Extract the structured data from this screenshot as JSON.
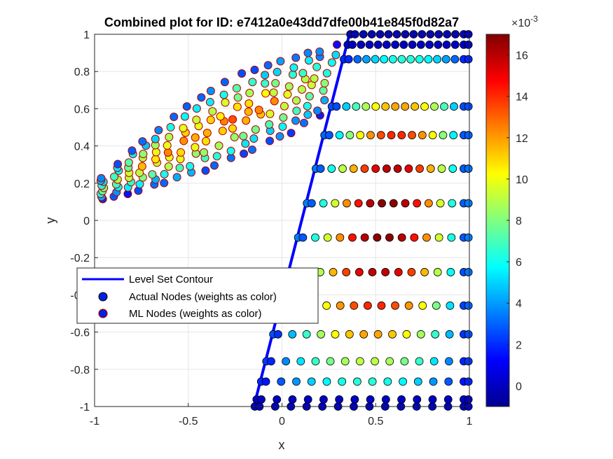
{
  "chart_data": {
    "type": "scatter",
    "title": "Combined plot for ID: e7412a0e43dd7dfe00b41e845f0d82a7",
    "xlabel": "x",
    "ylabel": "y",
    "xlim": [
      -1,
      1
    ],
    "ylim": [
      -1,
      1
    ],
    "x_ticks": [
      -1,
      -0.5,
      0,
      0.5,
      1
    ],
    "x_tick_labels": [
      "-1",
      "-0.5",
      "0",
      "0.5",
      "1"
    ],
    "y_ticks": [
      -1,
      -0.8,
      -0.6,
      -0.4,
      -0.2,
      0,
      0.2,
      0.4,
      0.6,
      0.8,
      1
    ],
    "y_tick_labels": [
      "-1",
      "-0.8",
      "-0.6",
      "-0.4",
      "-0.2",
      "0",
      "0.2",
      "0.4",
      "0.6",
      "0.8",
      "1"
    ],
    "grid": true,
    "colorbar": {
      "colormap": "jet",
      "range": [
        -0.001,
        0.017
      ],
      "ticks": [
        0,
        2,
        4,
        6,
        8,
        10,
        12,
        14,
        16
      ],
      "tick_labels": [
        "0",
        "2",
        "4",
        "6",
        "8",
        "10",
        "12",
        "14",
        "16"
      ],
      "exponent_label": "×10",
      "exponent_power": "-3"
    },
    "legend": {
      "placement": "middle-left",
      "entries": [
        {
          "label": "Level Set Contour",
          "style": "line",
          "color": "#0000ff"
        },
        {
          "label": "Actual Nodes (weights as color)",
          "style": "marker",
          "edge": "#000000"
        },
        {
          "label": "ML Nodes (weights as color)",
          "style": "marker",
          "edge": "#b00000"
        }
      ]
    },
    "contour": {
      "x": [
        -0.15,
        0.36
      ],
      "y": [
        -1,
        1
      ],
      "color": "#0000ff"
    },
    "actual_nodes": {
      "rows_y": [
        -1,
        -0.962,
        -0.866,
        -0.757,
        -0.612,
        -0.458,
        -0.278,
        -0.092,
        0.092,
        0.278,
        0.458,
        0.612,
        0.866,
        0.944,
        1
      ],
      "x_max": 1,
      "note_weights": "weights vary ~0 to 0.017, peaking near y=0 and mid-x"
    },
    "ml_nodes": {
      "region": "parallelogram from (-1,0.1)-(-0.98,0.21) to (0.35,0.97)",
      "weights_range": [
        0.001,
        0.013
      ]
    }
  }
}
